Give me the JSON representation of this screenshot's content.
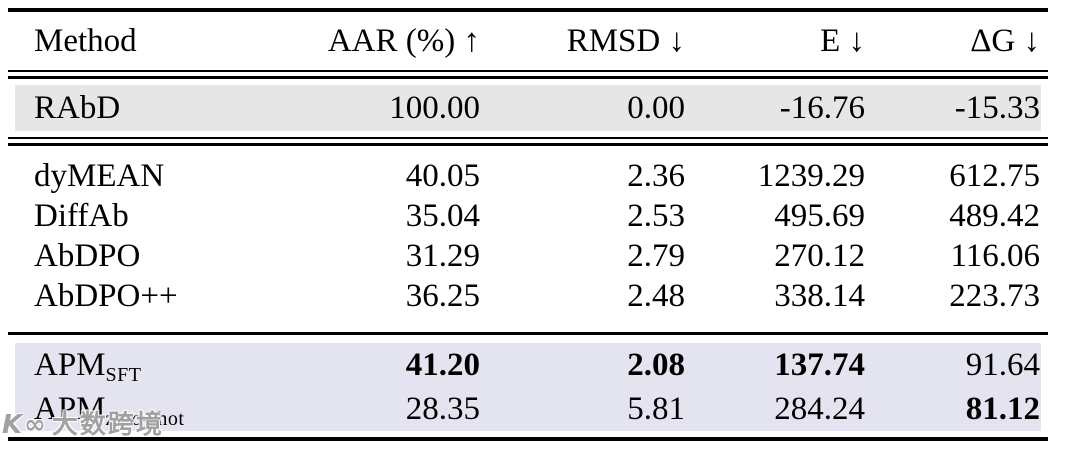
{
  "table": {
    "header": {
      "columns": [
        "Method",
        "AAR (%) ↑",
        "RMSD ↓",
        "E ↓",
        "ΔG ↓"
      ]
    },
    "reference_rows": [
      {
        "method": "RAbD",
        "subscript": "",
        "values": [
          "100.00",
          "0.00",
          "-16.76",
          "-15.33"
        ]
      }
    ],
    "baseline_rows": [
      {
        "method": "dyMEAN",
        "subscript": "",
        "values": [
          "40.05",
          "2.36",
          "1239.29",
          "612.75"
        ]
      },
      {
        "method": "DiffAb",
        "subscript": "",
        "values": [
          "35.04",
          "2.53",
          "495.69",
          "489.42"
        ]
      },
      {
        "method": "AbDPO",
        "subscript": "",
        "values": [
          "31.29",
          "2.79",
          "270.12",
          "116.06"
        ]
      },
      {
        "method": "AbDPO++",
        "subscript": "",
        "values": [
          "36.25",
          "2.48",
          "338.14",
          "223.73"
        ]
      }
    ],
    "our_rows": [
      {
        "method": "APM",
        "subscript": "SFT",
        "values": [
          "41.20",
          "2.08",
          "137.74",
          "91.64"
        ],
        "bold": [
          true,
          true,
          true,
          false
        ]
      },
      {
        "method": "APM",
        "subscript": "zero-shot",
        "values": [
          "28.35",
          "5.81",
          "284.24",
          "81.12"
        ],
        "bold": [
          false,
          false,
          false,
          true
        ]
      }
    ]
  },
  "watermark": {
    "logo": "K∞",
    "text": "大数跨境"
  },
  "colors": {
    "reference_row_bg": "#e6e6e6",
    "ours_row_bg": "#e4e4f0",
    "rule": "#000000"
  }
}
